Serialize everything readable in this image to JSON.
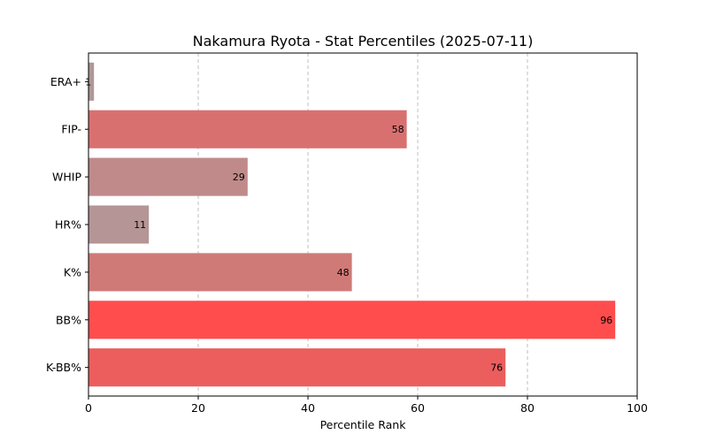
{
  "chart_data": {
    "type": "bar",
    "orientation": "horizontal",
    "title": "Nakamura Ryota - Stat Percentiles (2025-07-11)",
    "xlabel": "Percentile Rank",
    "ylabel": "",
    "xlim": [
      0,
      100
    ],
    "xticks": [
      "0",
      "20",
      "40",
      "60",
      "80",
      "100"
    ],
    "grid": "x-dashed",
    "categories": [
      "ERA+",
      "FIP-",
      "WHIP",
      "HR%",
      "K%",
      "BB%",
      "K-BB%"
    ],
    "values": [
      1,
      58,
      29,
      11,
      48,
      96,
      76
    ],
    "labels": [
      "1",
      "58",
      "29",
      "11",
      "48",
      "96",
      "76"
    ],
    "colors": [
      "#b09898",
      "#d97070",
      "#c08a8a",
      "#b59595",
      "#d07a77",
      "#ff4d4d",
      "#ec5e5e"
    ]
  }
}
